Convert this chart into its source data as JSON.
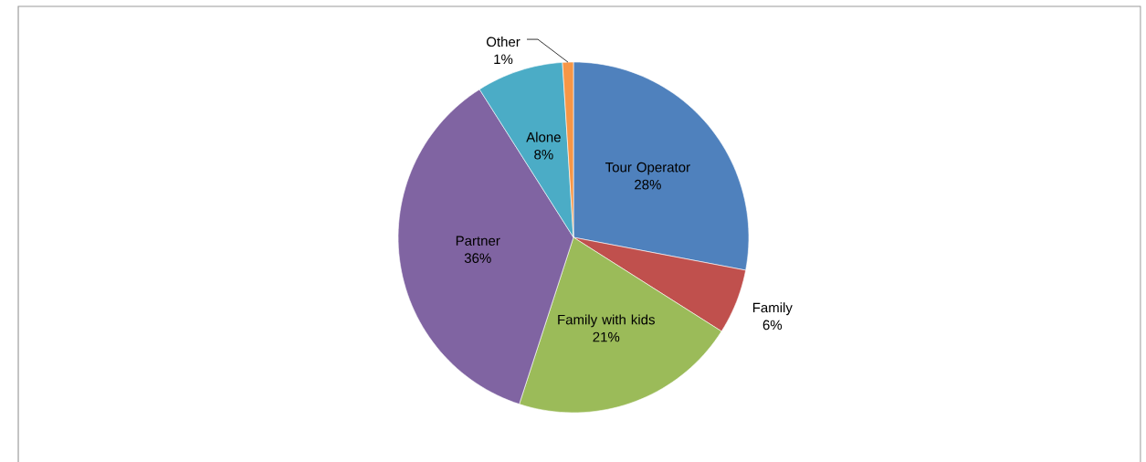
{
  "chart_data": {
    "type": "pie",
    "categories": [
      "Tour Operator",
      "Family",
      "Family with kids",
      "Partner",
      "Alone",
      "Other"
    ],
    "values": [
      28,
      6,
      21,
      36,
      8,
      1
    ],
    "value_labels": [
      "28%",
      "6%",
      "21%",
      "36%",
      "8%",
      "1%"
    ],
    "colors": [
      "#4f81bd",
      "#c0504d",
      "#9bbb59",
      "#8064a2",
      "#4bacc6",
      "#f79646"
    ]
  }
}
